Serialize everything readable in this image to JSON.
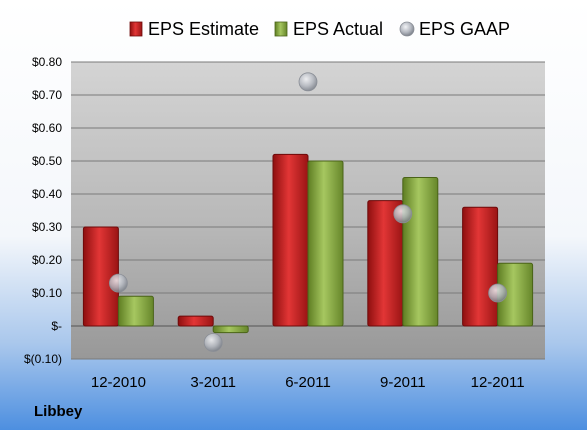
{
  "chart_data": {
    "type": "bar",
    "categories": [
      "12-2010",
      "3-2011",
      "6-2011",
      "9-2011",
      "12-2011"
    ],
    "series": [
      {
        "name": "EPS Estimate",
        "kind": "bar",
        "color": "#cc1f1f",
        "values": [
          0.3,
          0.03,
          0.52,
          0.38,
          0.36
        ]
      },
      {
        "name": "EPS Actual",
        "kind": "bar",
        "color": "#8db040",
        "values": [
          0.09,
          -0.02,
          0.5,
          0.45,
          0.19
        ]
      },
      {
        "name": "EPS GAAP",
        "kind": "scatter",
        "color": "#b8bcc4",
        "values": [
          0.13,
          -0.05,
          0.74,
          0.34,
          0.1
        ]
      }
    ],
    "ylim": [
      -0.1,
      0.8
    ],
    "yticks": [
      {
        "value": 0.8,
        "label": "$0.80"
      },
      {
        "value": 0.7,
        "label": "$0.70"
      },
      {
        "value": 0.6,
        "label": "$0.60"
      },
      {
        "value": 0.5,
        "label": "$0.50"
      },
      {
        "value": 0.4,
        "label": "$0.40"
      },
      {
        "value": 0.3,
        "label": "$0.30"
      },
      {
        "value": 0.2,
        "label": "$0.20"
      },
      {
        "value": 0.1,
        "label": "$0.10"
      },
      {
        "value": 0.0,
        "label": "$-"
      },
      {
        "value": -0.1,
        "label": "$(0.10)"
      }
    ],
    "grid": true,
    "legend_position": "top",
    "company": "Libbey"
  }
}
